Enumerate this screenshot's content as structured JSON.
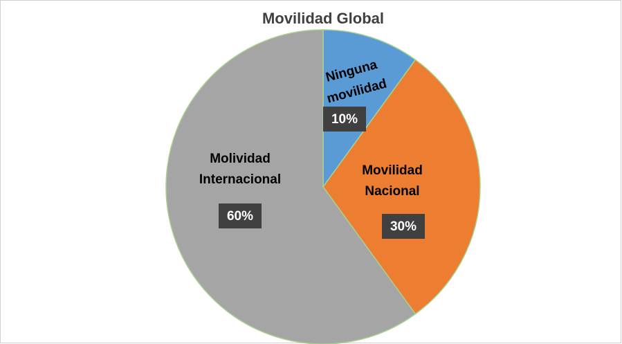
{
  "chart_data": {
    "type": "pie",
    "title": "Movilidad Global",
    "categories": [
      "Ninguna movilidad",
      "Movilidad Nacional",
      "Molividad Internacional"
    ],
    "values": [
      10,
      30,
      60
    ],
    "value_labels": [
      "10%",
      "30%",
      "60%"
    ],
    "colors": [
      "#5b9bd5",
      "#ed7d31",
      "#a5a5a5"
    ]
  }
}
